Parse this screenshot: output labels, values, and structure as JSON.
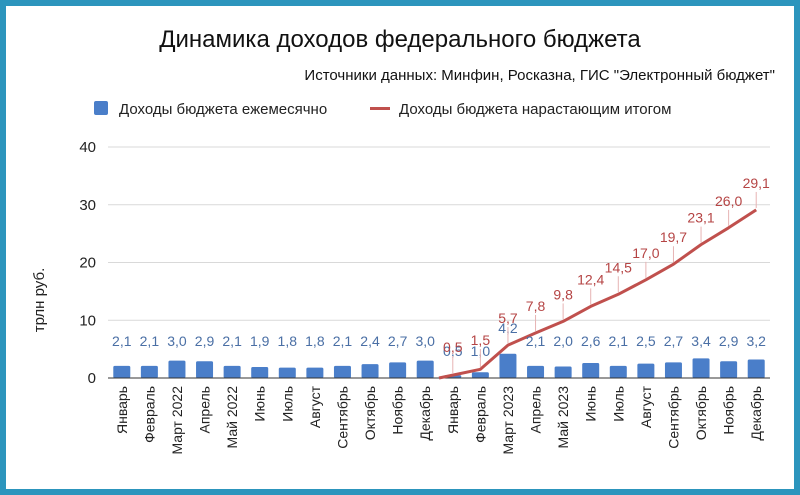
{
  "chart_data": {
    "type": "bar",
    "title": "Динамика доходов федерального бюджета",
    "subtitle": "Источники данных: Минфин, Росказна, ГИС \"Электронный бюджет\"",
    "xlabel": "",
    "ylabel": "трлн руб.",
    "ylim": [
      0,
      40
    ],
    "yticks": [
      "0",
      "10",
      "20",
      "30",
      "40"
    ],
    "grid": true,
    "legend_position": "top",
    "categories": [
      "Январь",
      "Февраль",
      "Март 2022",
      "Апрель",
      "Май 2022",
      "Июнь",
      "Июль",
      "Август",
      "Сентябрь",
      "Октябрь",
      "Ноябрь",
      "Декабрь",
      "Январь",
      "Февраль",
      "Март 2023",
      "Апрель",
      "Май 2023",
      "Июнь",
      "Июль",
      "Август",
      "Сентябрь",
      "Октябрь",
      "Ноябрь",
      "Декабрь"
    ],
    "series": [
      {
        "name": "Доходы бюджета ежемесячно",
        "kind": "bar",
        "color": "#4a7ec9",
        "values": [
          2.1,
          2.1,
          3.0,
          2.9,
          2.1,
          1.9,
          1.8,
          1.8,
          2.1,
          2.4,
          2.7,
          3.0,
          0.5,
          1.0,
          4.2,
          2.1,
          2.0,
          2.6,
          2.1,
          2.5,
          2.7,
          3.4,
          2.9,
          3.2
        ],
        "labels": [
          "2,1",
          "2,1",
          "3,0",
          "2,9",
          "2,1",
          "1,9",
          "1,8",
          "1,8",
          "2,1",
          "2,4",
          "2,7",
          "3,0",
          "0,5",
          "1,0",
          "4,2",
          "2,1",
          "2,0",
          "2,6",
          "2,1",
          "2,5",
          "2,7",
          "3,4",
          "2,9",
          "3,2"
        ]
      },
      {
        "name": "Доходы бюджета нарастающим итогом",
        "kind": "line",
        "color": "#c0504d",
        "values": [
          null,
          null,
          null,
          null,
          null,
          null,
          null,
          null,
          null,
          null,
          null,
          null,
          0.5,
          1.5,
          5.7,
          7.8,
          9.8,
          12.4,
          14.5,
          17.0,
          19.7,
          23.1,
          26.0,
          29.1
        ],
        "labels": [
          "",
          "",
          "",
          "",
          "",
          "",
          "",
          "",
          "",
          "",
          "",
          "",
          "0,5",
          "1,5",
          "5,7",
          "7,8",
          "9,8",
          "12,4",
          "14,5",
          "17,0",
          "19,7",
          "23,1",
          "26,0",
          "29,1"
        ]
      }
    ]
  }
}
